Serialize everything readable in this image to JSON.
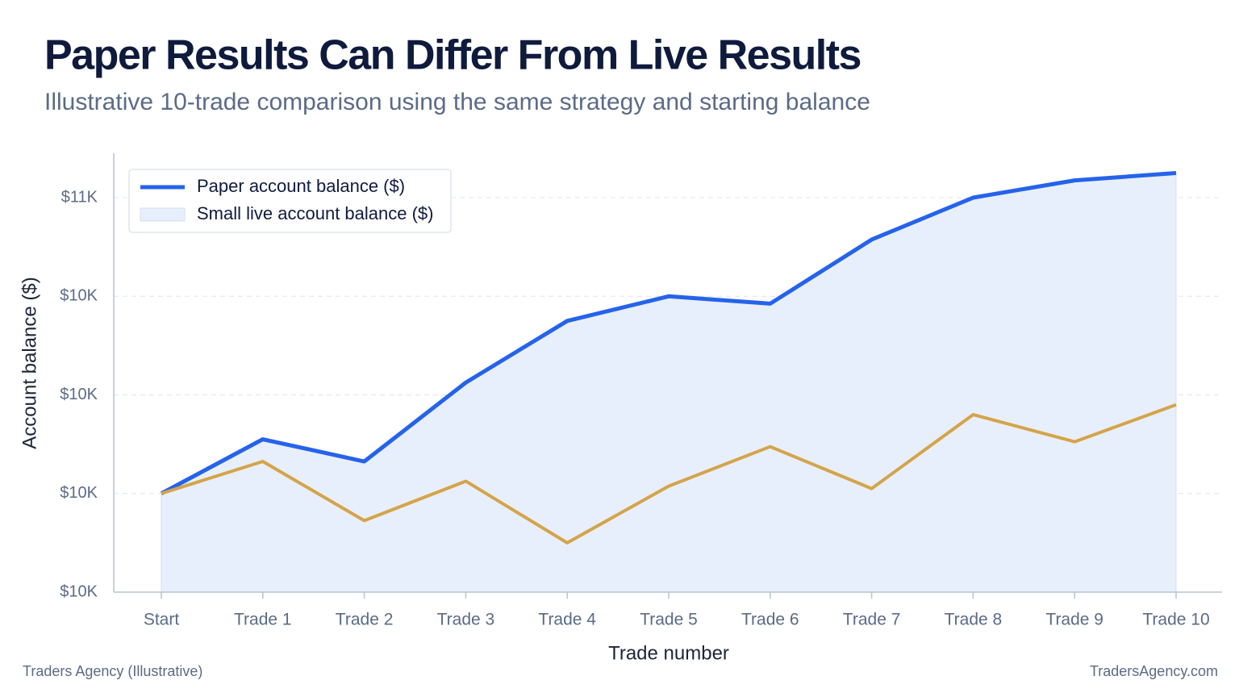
{
  "chart_data": {
    "type": "line",
    "title": "Paper Results Can Differ From Live Results",
    "subtitle": "Illustrative 10-trade comparison using the same strategy and starting balance",
    "x_label": "Trade number",
    "y_label": "Account balance ($)",
    "source": "Traders Agency (Illustrative)",
    "site": "TradersAgency.com",
    "categories": [
      "Start",
      "Trade 1",
      "Trade 2",
      "Trade 3",
      "Trade 4",
      "Trade 5",
      "Trade 6",
      "Trade 7",
      "Trade 8",
      "Trade 9",
      "Trade 10"
    ],
    "series": [
      {
        "name": "Paper account balance ($)",
        "color": "#2563eb",
        "fill": "#e8effc",
        "values": [
          10000,
          10110,
          10065,
          10225,
          10350,
          10400,
          10385,
          10515,
          10600,
          10635,
          10650
        ]
      },
      {
        "name": "Small live account balance ($)",
        "color": "#d4a44a",
        "values": [
          10000,
          10065,
          9945,
          10025,
          9900,
          10015,
          10095,
          10010,
          10160,
          10105,
          10180
        ]
      }
    ],
    "ylim": [
      9800,
      10690
    ],
    "yticks": [
      {
        "value": 9800,
        "label": "$10K"
      },
      {
        "value": 10000,
        "label": "$10K"
      },
      {
        "value": 10200,
        "label": "$10K"
      },
      {
        "value": 10400,
        "label": "$10K"
      },
      {
        "value": 10600,
        "label": "$11K"
      }
    ],
    "grid": true,
    "legend": "upper left"
  }
}
